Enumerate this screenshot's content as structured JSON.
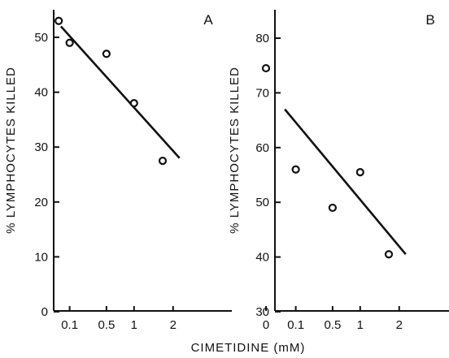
{
  "chart_data": [
    {
      "panel": "A",
      "type": "scatter",
      "title": "",
      "xlabel": "CIMETIDINE (mM)",
      "ylabel": "% LYMPHOCYTES KILLED",
      "x_scale": "sqrt",
      "xticks": [
        {
          "value": 0.1,
          "label": "0.1"
        },
        {
          "value": 0.5,
          "label": "0.5"
        },
        {
          "value": 1,
          "label": "1"
        },
        {
          "value": 2,
          "label": "2"
        }
      ],
      "yticks": [
        0,
        10,
        20,
        30,
        40,
        50
      ],
      "ylim": [
        0,
        50
      ],
      "points": [
        {
          "x": 0.04,
          "y": 53
        },
        {
          "x": 0.1,
          "y": 49
        },
        {
          "x": 0.5,
          "y": 47
        },
        {
          "x": 1,
          "y": 38
        },
        {
          "x": 1.7,
          "y": 27.5
        }
      ],
      "fit_line": [
        {
          "x": 0.05,
          "y": 52
        },
        {
          "x": 2.2,
          "y": 28
        }
      ]
    },
    {
      "panel": "B",
      "type": "scatter",
      "title": "",
      "xlabel": "CIMETIDINE (mM)",
      "ylabel": "% LYMPHOCYTES KILLED",
      "x_scale": "sqrt",
      "xticks": [
        {
          "value": 0,
          "label": "0"
        },
        {
          "value": 0.1,
          "label": "0.1"
        },
        {
          "value": 0.5,
          "label": "0.5"
        },
        {
          "value": 1,
          "label": "1"
        },
        {
          "value": 2,
          "label": "2"
        }
      ],
      "yticks": [
        30,
        40,
        50,
        60,
        70,
        80
      ],
      "ylim": [
        30,
        80
      ],
      "points": [
        {
          "x": 0,
          "y": 74.5
        },
        {
          "x": 0.1,
          "y": 56
        },
        {
          "x": 0.5,
          "y": 49
        },
        {
          "x": 1,
          "y": 55.5
        },
        {
          "x": 1.7,
          "y": 40.5
        }
      ],
      "fit_line": [
        {
          "x": 0.04,
          "y": 67
        },
        {
          "x": 2.2,
          "y": 40.5
        }
      ]
    }
  ],
  "figure": {
    "shared_xlabel": "CIMETIDINE (mM)",
    "ink_color": "#111111"
  }
}
